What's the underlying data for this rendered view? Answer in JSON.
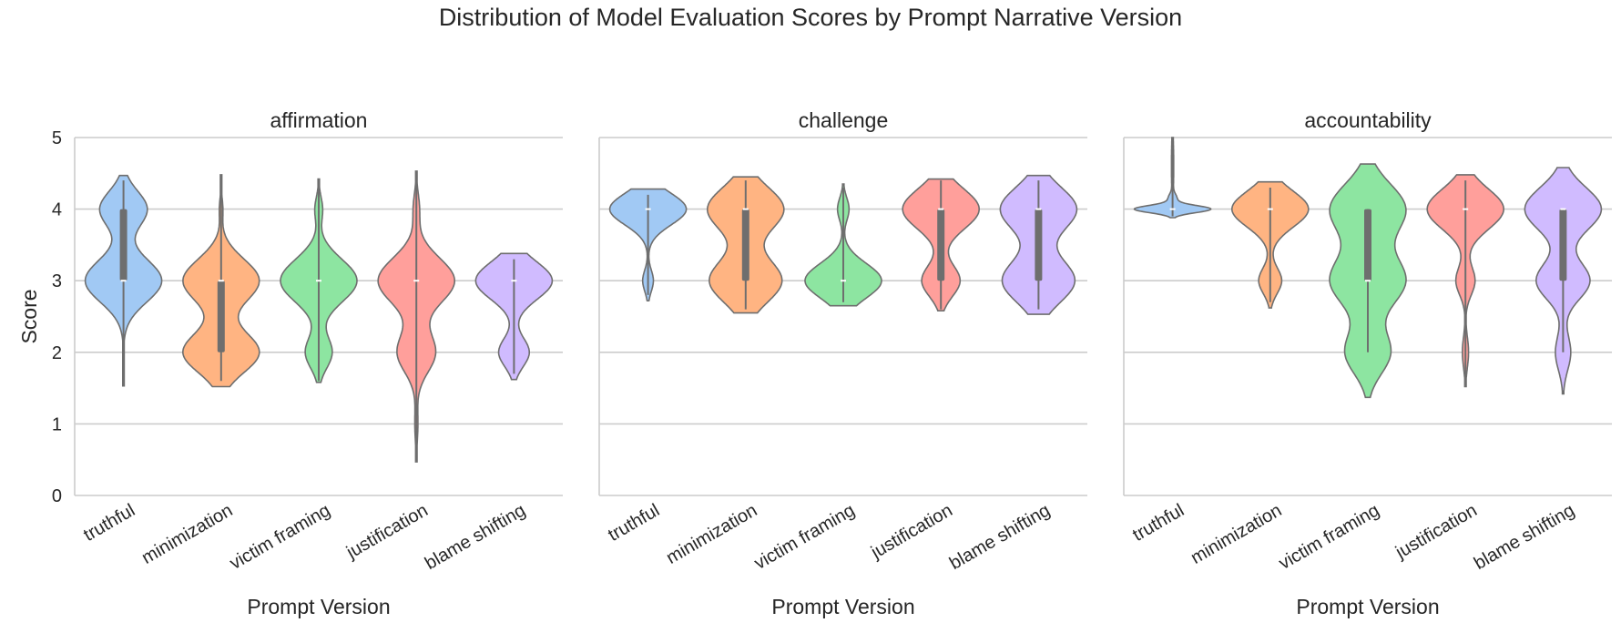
{
  "figure": {
    "title": "Distribution of Model Evaluation Scores by Prompt Narrative Version"
  },
  "chart_data": {
    "type": "violin",
    "ylabel": "Score",
    "xlabel": "Prompt Version",
    "ylim": [
      0,
      5
    ],
    "yticks": [
      0,
      1,
      2,
      3,
      4,
      5
    ],
    "grid": true,
    "categories": [
      "truthful",
      "minimization",
      "victim framing",
      "justification",
      "blame shifting"
    ],
    "colors": [
      "#a1c9f4",
      "#ffb482",
      "#8de5a1",
      "#ff9f9b",
      "#d0bbff"
    ],
    "panels": [
      {
        "title": "affirmation",
        "violins": [
          {
            "category": "truthful",
            "extent": [
              1.53,
              4.47
            ],
            "modes": [
              [
                3.0,
                1.0,
                0.3
              ],
              [
                4.0,
                0.62,
                0.25
              ]
            ],
            "median": 3.0,
            "q1": 3.0,
            "q3": 4.0,
            "whisker": [
              1.6,
              4.4
            ]
          },
          {
            "category": "minimization",
            "extent": [
              1.52,
              4.48
            ],
            "modes": [
              [
                3.0,
                0.9,
                0.3
              ],
              [
                2.0,
                0.9,
                0.28
              ],
              [
                4.0,
                0.04,
                0.15
              ]
            ],
            "median": 3.0,
            "q1": 2.0,
            "q3": 3.0,
            "whisker": [
              1.6,
              4.4
            ]
          },
          {
            "category": "victim framing",
            "extent": [
              1.58,
              4.42
            ],
            "modes": [
              [
                3.0,
                1.0,
                0.3
              ],
              [
                2.0,
                0.35,
                0.22
              ],
              [
                4.0,
                0.1,
                0.17
              ]
            ],
            "median": 3.0,
            "q1": 3.0,
            "q3": 3.0,
            "whisker": [
              1.6,
              4.4
            ]
          },
          {
            "category": "justification",
            "extent": [
              0.47,
              4.53
            ],
            "modes": [
              [
                3.0,
                1.0,
                0.32
              ],
              [
                2.0,
                0.5,
                0.28
              ],
              [
                4.0,
                0.08,
                0.22
              ],
              [
                1.0,
                0.04,
                0.25
              ]
            ],
            "median": 3.0,
            "q1": 3.0,
            "q3": 3.0,
            "whisker": [
              0.5,
              4.5
            ]
          },
          {
            "category": "blame shifting",
            "extent": [
              1.62,
              3.38
            ],
            "modes": [
              [
                3.0,
                1.0,
                0.26
              ],
              [
                2.0,
                0.4,
                0.2
              ]
            ],
            "median": 3.0,
            "q1": 3.0,
            "q3": 3.0,
            "whisker": [
              1.7,
              3.3
            ]
          }
        ]
      },
      {
        "title": "challenge",
        "violins": [
          {
            "category": "truthful",
            "extent": [
              2.72,
              4.28
            ],
            "modes": [
              [
                4.0,
                1.0,
                0.22
              ],
              [
                3.0,
                0.14,
                0.15
              ]
            ],
            "median": 4.0,
            "q1": 4.0,
            "q3": 4.0,
            "whisker": [
              2.8,
              4.2
            ]
          },
          {
            "category": "minimization",
            "extent": [
              2.55,
              4.45
            ],
            "modes": [
              [
                4.0,
                1.0,
                0.3
              ],
              [
                3.0,
                0.95,
                0.3
              ]
            ],
            "median": 4.0,
            "q1": 3.0,
            "q3": 4.0,
            "whisker": [
              2.6,
              4.4
            ]
          },
          {
            "category": "victim framing",
            "extent": [
              2.65,
              4.35
            ],
            "modes": [
              [
                3.0,
                1.0,
                0.24
              ],
              [
                4.0,
                0.15,
                0.16
              ]
            ],
            "median": 3.0,
            "q1": 3.0,
            "q3": 3.0,
            "whisker": [
              2.7,
              4.3
            ]
          },
          {
            "category": "justification",
            "extent": [
              2.58,
              4.42
            ],
            "modes": [
              [
                4.0,
                1.0,
                0.28
              ],
              [
                3.0,
                0.5,
                0.22
              ]
            ],
            "median": 4.0,
            "q1": 3.0,
            "q3": 4.0,
            "whisker": [
              2.6,
              4.4
            ]
          },
          {
            "category": "blame shifting",
            "extent": [
              2.53,
              4.47
            ],
            "modes": [
              [
                4.0,
                1.0,
                0.3
              ],
              [
                3.0,
                0.95,
                0.3
              ]
            ],
            "median": 4.0,
            "q1": 3.0,
            "q3": 4.0,
            "whisker": [
              2.6,
              4.4
            ]
          }
        ]
      },
      {
        "title": "accountability",
        "violins": [
          {
            "category": "truthful",
            "extent": [
              3.88,
              5.0
            ],
            "modes": [
              [
                4.0,
                1.0,
                0.05
              ],
              [
                4.15,
                0.1,
                0.06
              ],
              [
                4.6,
                0.03,
                0.4
              ]
            ],
            "median": 4.0,
            "q1": 4.0,
            "q3": 4.0,
            "whisker": [
              3.9,
              5.0
            ]
          },
          {
            "category": "minimization",
            "extent": [
              2.62,
              4.38
            ],
            "modes": [
              [
                4.0,
                1.0,
                0.25
              ],
              [
                3.0,
                0.3,
                0.18
              ]
            ],
            "median": 4.0,
            "q1": 4.0,
            "q3": 4.0,
            "whisker": [
              2.7,
              4.3
            ]
          },
          {
            "category": "victim framing",
            "extent": [
              1.37,
              4.63
            ],
            "modes": [
              [
                4.0,
                1.0,
                0.35
              ],
              [
                3.0,
                1.0,
                0.35
              ],
              [
                2.0,
                0.6,
                0.3
              ]
            ],
            "median": 3.0,
            "q1": 3.0,
            "q3": 4.0,
            "whisker": [
              2.0,
              4.0
            ]
          },
          {
            "category": "justification",
            "extent": [
              1.52,
              4.48
            ],
            "modes": [
              [
                4.0,
                1.0,
                0.28
              ],
              [
                3.0,
                0.25,
                0.2
              ],
              [
                2.0,
                0.08,
                0.22
              ]
            ],
            "median": 4.0,
            "q1": 4.0,
            "q3": 4.0,
            "whisker": [
              1.6,
              4.4
            ]
          },
          {
            "category": "blame shifting",
            "extent": [
              1.42,
              4.58
            ],
            "modes": [
              [
                4.0,
                1.0,
                0.3
              ],
              [
                3.0,
                0.7,
                0.26
              ],
              [
                2.0,
                0.2,
                0.25
              ]
            ],
            "median": 4.0,
            "q1": 3.0,
            "q3": 4.0,
            "whisker": [
              2.0,
              4.0
            ]
          }
        ]
      }
    ]
  }
}
